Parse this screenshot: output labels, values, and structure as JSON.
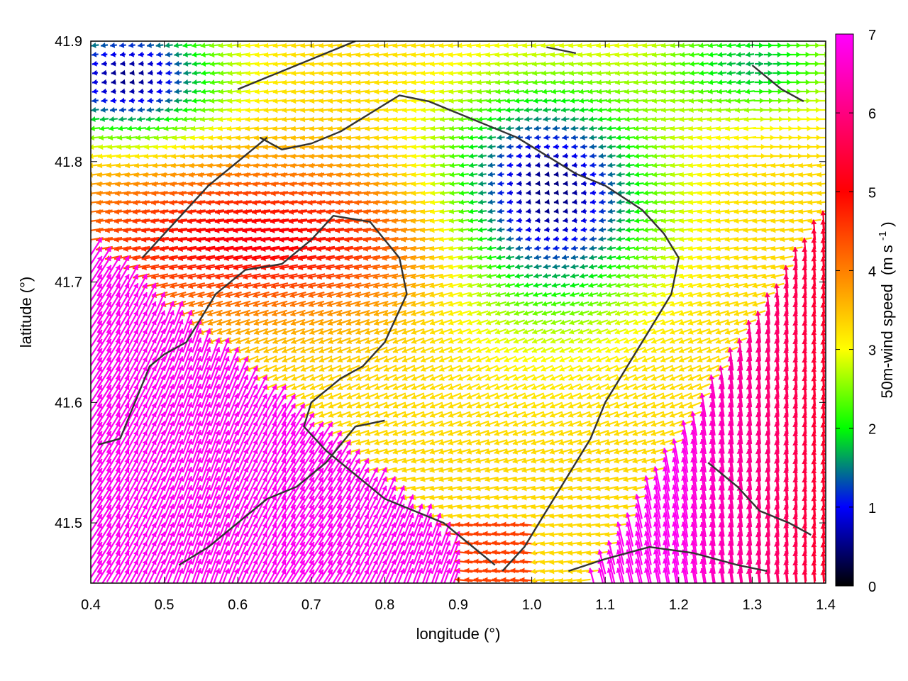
{
  "chart_data": {
    "type": "vector-field",
    "xlabel": "longitude (°)",
    "ylabel": "latitude (°)",
    "xlim": [
      0.4,
      1.4
    ],
    "ylim": [
      41.45,
      41.9
    ],
    "xticks": [
      "0.4",
      "0.5",
      "0.6",
      "0.7",
      "0.8",
      "0.9",
      "1.0",
      "1.1",
      "1.2",
      "1.3",
      "1.4"
    ],
    "xtick_values": [
      0.4,
      0.5,
      0.6,
      0.7,
      0.8,
      0.9,
      1.0,
      1.1,
      1.2,
      1.3,
      1.4
    ],
    "yticks": [
      "41.5",
      "41.6",
      "41.7",
      "41.8",
      "41.9"
    ],
    "ytick_values": [
      41.5,
      41.6,
      41.7,
      41.8,
      41.9
    ],
    "colorbar": {
      "label": "50m-wind speed",
      "unit_prefix": "(m s",
      "unit_exp": "-1",
      "unit_suffix": ")",
      "range": [
        0,
        7
      ],
      "ticks": [
        "0",
        "1",
        "2",
        "3",
        "4",
        "5",
        "6",
        "7"
      ],
      "tick_values": [
        0,
        1,
        2,
        3,
        4,
        5,
        6,
        7
      ],
      "colors": [
        "#000000",
        "#0000ff",
        "#00ff00",
        "#ffff00",
        "#ff8000",
        "#ff0000",
        "#ff00ff"
      ]
    },
    "grid": false,
    "contours": [
      [
        [
          0.52,
          41.465
        ],
        [
          0.56,
          41.48
        ],
        [
          0.6,
          41.5
        ],
        [
          0.64,
          41.52
        ],
        [
          0.68,
          41.53
        ],
        [
          0.72,
          41.55
        ],
        [
          0.76,
          41.58
        ],
        [
          0.8,
          41.585
        ]
      ],
      [
        [
          0.41,
          41.565
        ],
        [
          0.44,
          41.57
        ],
        [
          0.46,
          41.6
        ],
        [
          0.48,
          41.63
        ],
        [
          0.5,
          41.64
        ],
        [
          0.53,
          41.65
        ],
        [
          0.55,
          41.67
        ],
        [
          0.57,
          41.69
        ],
        [
          0.61,
          41.71
        ],
        [
          0.66,
          41.715
        ],
        [
          0.7,
          41.735
        ],
        [
          0.73,
          41.755
        ],
        [
          0.78,
          41.75
        ],
        [
          0.82,
          41.72
        ],
        [
          0.83,
          41.69
        ],
        [
          0.8,
          41.65
        ],
        [
          0.77,
          41.63
        ],
        [
          0.74,
          41.62
        ],
        [
          0.72,
          41.61
        ],
        [
          0.7,
          41.6
        ],
        [
          0.69,
          41.58
        ],
        [
          0.72,
          41.56
        ],
        [
          0.76,
          41.54
        ],
        [
          0.8,
          41.52
        ],
        [
          0.84,
          41.51
        ],
        [
          0.88,
          41.5
        ],
        [
          0.92,
          41.48
        ],
        [
          0.95,
          41.465
        ]
      ],
      [
        [
          0.63,
          41.82
        ],
        [
          0.66,
          41.81
        ],
        [
          0.7,
          41.815
        ],
        [
          0.74,
          41.825
        ],
        [
          0.78,
          41.84
        ],
        [
          0.82,
          41.855
        ],
        [
          0.86,
          41.85
        ],
        [
          0.9,
          41.84
        ],
        [
          0.94,
          41.83
        ],
        [
          0.98,
          41.82
        ],
        [
          1.02,
          41.805
        ],
        [
          1.06,
          41.79
        ],
        [
          1.1,
          41.78
        ],
        [
          1.15,
          41.76
        ],
        [
          1.18,
          41.74
        ],
        [
          1.2,
          41.72
        ],
        [
          1.19,
          41.69
        ],
        [
          1.16,
          41.66
        ],
        [
          1.13,
          41.63
        ],
        [
          1.1,
          41.6
        ],
        [
          1.08,
          41.57
        ],
        [
          1.05,
          41.54
        ],
        [
          1.02,
          41.51
        ],
        [
          0.99,
          41.48
        ],
        [
          0.96,
          41.46
        ]
      ],
      [
        [
          0.47,
          41.72
        ],
        [
          0.5,
          41.74
        ],
        [
          0.53,
          41.76
        ],
        [
          0.56,
          41.78
        ],
        [
          0.6,
          41.8
        ],
        [
          0.64,
          41.82
        ]
      ],
      [
        [
          0.6,
          41.86
        ],
        [
          0.64,
          41.87
        ],
        [
          0.68,
          41.88
        ],
        [
          0.72,
          41.89
        ],
        [
          0.76,
          41.9
        ]
      ],
      [
        [
          1.02,
          41.895
        ],
        [
          1.06,
          41.89
        ]
      ],
      [
        [
          1.3,
          41.88
        ],
        [
          1.34,
          41.86
        ],
        [
          1.37,
          41.85
        ]
      ],
      [
        [
          1.24,
          41.55
        ],
        [
          1.28,
          41.53
        ],
        [
          1.31,
          41.51
        ],
        [
          1.35,
          41.5
        ],
        [
          1.38,
          41.49
        ]
      ],
      [
        [
          1.05,
          41.46
        ],
        [
          1.1,
          41.47
        ],
        [
          1.16,
          41.48
        ],
        [
          1.22,
          41.475
        ],
        [
          1.28,
          41.465
        ],
        [
          1.32,
          41.46
        ]
      ]
    ]
  }
}
